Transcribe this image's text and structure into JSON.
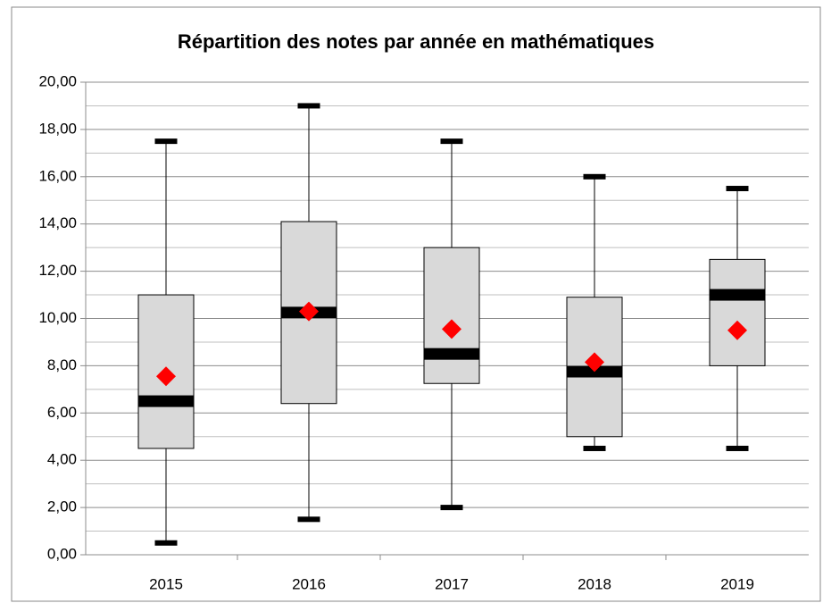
{
  "chart_data": {
    "type": "box",
    "title": "Répartition des notes par année en mathématiques",
    "categories": [
      "2015",
      "2016",
      "2017",
      "2018",
      "2019"
    ],
    "min": [
      0.5,
      1.5,
      2.0,
      4.5,
      4.5
    ],
    "q1": [
      4.5,
      6.4,
      7.25,
      5.0,
      8.0
    ],
    "median": [
      6.5,
      10.25,
      8.5,
      7.75,
      11.0
    ],
    "q3": [
      11.0,
      14.1,
      13.0,
      10.9,
      12.5
    ],
    "max": [
      17.5,
      19.0,
      17.5,
      16.0,
      15.5
    ],
    "mean": [
      7.55,
      10.3,
      9.55,
      8.15,
      9.5
    ],
    "box_color": "#d9d9d9",
    "median_color": "#000000",
    "mean_color": "#ff0000",
    "ylim": [
      0,
      20
    ],
    "yticks": [
      {
        "value": 0,
        "label": "0,00"
      },
      {
        "value": 2,
        "label": "2,00"
      },
      {
        "value": 4,
        "label": "4,00"
      },
      {
        "value": 6,
        "label": "6,00"
      },
      {
        "value": 8,
        "label": "8,00"
      },
      {
        "value": 10,
        "label": "10,00"
      },
      {
        "value": 12,
        "label": "12,00"
      },
      {
        "value": 14,
        "label": "14,00"
      },
      {
        "value": 16,
        "label": "16,00"
      },
      {
        "value": 18,
        "label": "18,00"
      },
      {
        "value": 20,
        "label": "20,00"
      }
    ],
    "minor_yticks": [
      1,
      3,
      5,
      7,
      9,
      11,
      13,
      15,
      17,
      19
    ],
    "grid": true
  }
}
